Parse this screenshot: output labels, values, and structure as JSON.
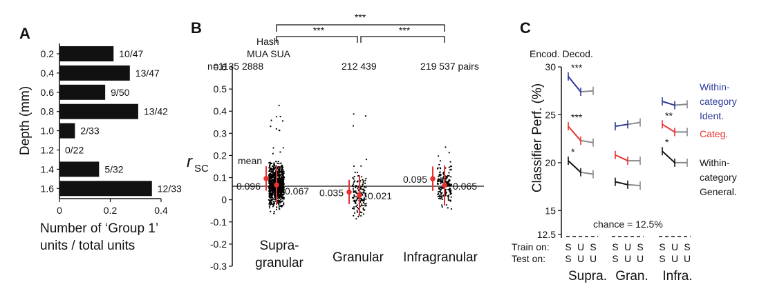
{
  "chart_data": [
    {
      "panel": "A",
      "type": "bar",
      "orientation": "horizontal",
      "categories": [
        "0.2",
        "0.4",
        "0.6",
        "0.8",
        "1.0",
        "1.2",
        "1.4",
        "1.6"
      ],
      "values": [
        0.213,
        0.277,
        0.18,
        0.31,
        0.061,
        0.0,
        0.156,
        0.364
      ],
      "bar_labels": [
        "10/47",
        "13/47",
        "9/50",
        "13/42",
        "2/33",
        "0/22",
        "5/32",
        "12/33"
      ],
      "ylabel": "Depth (mm)",
      "xlabel_line1": "Number of ‘Group 1’",
      "xlabel_line2": "units / total units",
      "xticks": [
        "0",
        "0.2",
        "0.4"
      ],
      "xlim": [
        0,
        0.4
      ]
    },
    {
      "panel": "B",
      "type": "scatter",
      "ylabel": "r",
      "ylabel_sub": "SC",
      "ylim": [
        -0.3,
        0.6
      ],
      "yticks": [
        "0.6",
        "0.5",
        "0.4",
        "0.3",
        "0.2",
        "0.1",
        "0",
        "-0.1",
        "-0.2",
        "-0.3"
      ],
      "header_hash": "Hash",
      "header_types": "MUA SUA",
      "counts": [
        "n=1135 2888",
        "212 439",
        "219 537 pairs"
      ],
      "mean_word": "mean",
      "groups": [
        {
          "label1": "Supra-",
          "label2": "granular",
          "mua_mean": 0.096,
          "sua_mean": 0.067,
          "mua_label": "0.096",
          "sua_label": "0.067",
          "n_mua": 1135,
          "n_sua": 2888
        },
        {
          "label1": "Granular",
          "label2": "",
          "mua_mean": 0.035,
          "sua_mean": 0.021,
          "mua_label": "0.035",
          "sua_label": "0.021",
          "n_mua": 212,
          "n_sua": 439
        },
        {
          "label1": "Infragranular",
          "label2": "",
          "mua_mean": 0.095,
          "sua_mean": 0.065,
          "mua_label": "0.095",
          "sua_label": "0.065",
          "n_mua": 219,
          "n_sua": 537
        }
      ],
      "significance": [
        "***",
        "***",
        "***"
      ]
    },
    {
      "panel": "C",
      "type": "line",
      "ylabel": "Classifier Perf. (%)",
      "ylim": [
        12.5,
        30
      ],
      "yticks": [
        "30",
        "25",
        "20",
        "15",
        "12.5"
      ],
      "chance_label": "chance = 12.5%",
      "encod_decod": "Encod. Decod.",
      "train_label": "Train on:",
      "test_label": "Test on:",
      "train_conditions": [
        "S",
        "U",
        "S"
      ],
      "test_conditions": [
        "S",
        "U",
        "U"
      ],
      "groups": [
        "Supra.",
        "Gran.",
        "Infra."
      ],
      "series": [
        {
          "name": "Within-category Ident.",
          "legend": [
            "Within-",
            "category",
            "Ident."
          ],
          "color": "#2b3a9a",
          "values": [
            [
              29.0,
              27.4,
              27.5
            ],
            [
              23.8,
              24.0,
              24.2
            ],
            [
              26.4,
              26.0,
              26.1
            ]
          ],
          "stars": [
            "***",
            "",
            ""
          ]
        },
        {
          "name": "Categ.",
          "legend": [
            "Categ."
          ],
          "color": "#e8322f",
          "values": [
            [
              23.8,
              22.3,
              22.1
            ],
            [
              20.8,
              20.2,
              20.2
            ],
            [
              24.0,
              23.2,
              23.2
            ]
          ],
          "stars": [
            "***",
            "",
            "**"
          ]
        },
        {
          "name": "Within-category General.",
          "legend": [
            "Within-",
            "category",
            "General."
          ],
          "color": "#111111",
          "values": [
            [
              20.2,
              19.0,
              18.8
            ],
            [
              18.0,
              17.7,
              17.6
            ],
            [
              21.2,
              20.0,
              20.0
            ]
          ],
          "stars": [
            "*",
            "",
            "*"
          ]
        }
      ],
      "shift_color": "#888888"
    }
  ]
}
